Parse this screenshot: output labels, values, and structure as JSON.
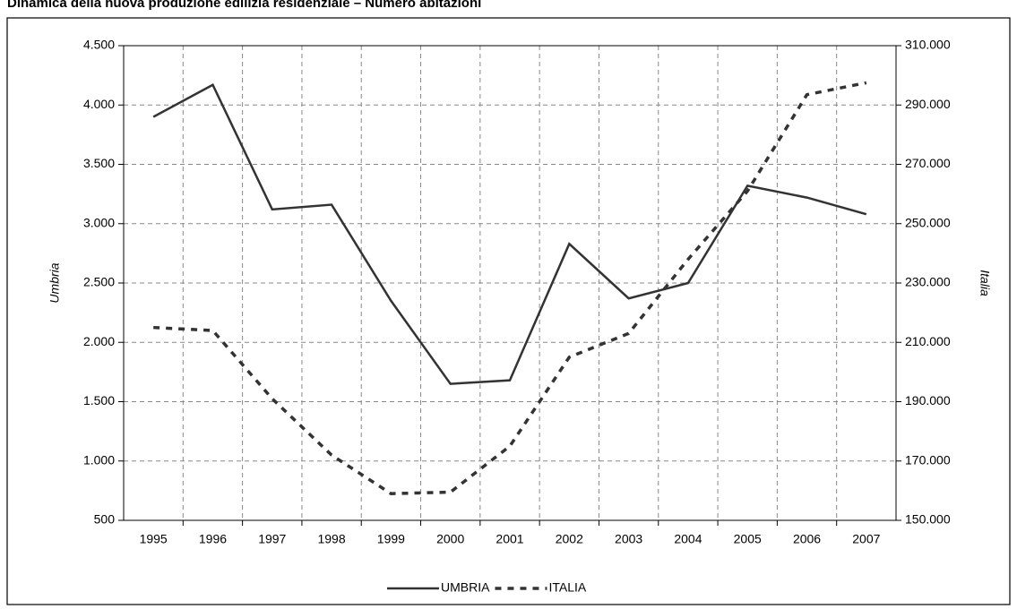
{
  "chart_data": {
    "type": "line",
    "title": "Dinamica della nuova produzione edilizia residenziale – Numero abitazioni",
    "ylabel": "Umbria",
    "y2label": "Italia",
    "categories": [
      "1995",
      "1996",
      "1997",
      "1998",
      "1999",
      "2000",
      "2001",
      "2002",
      "2003",
      "2004",
      "2005",
      "2006",
      "2007"
    ],
    "series": [
      {
        "name": "UMBRIA",
        "color": "#333333",
        "style": "solid",
        "values": [
          3900,
          4170,
          3120,
          3160,
          2350,
          1650,
          1680,
          2830,
          2370,
          2500,
          3320,
          3220,
          3080
        ]
      },
      {
        "name": "ITALIA",
        "color": "#333333",
        "style": "dotted",
        "axis": "y2",
        "values": [
          215000,
          214000,
          191000,
          172000,
          159000,
          159500,
          175000,
          205000,
          213000,
          238000,
          261000,
          293500,
          297500
        ]
      }
    ],
    "ylim": [
      500,
      4500
    ],
    "yticks": [
      {
        "value": 500,
        "label": "500"
      },
      {
        "value": 1000,
        "label": "1.000"
      },
      {
        "value": 1500,
        "label": "1.500"
      },
      {
        "value": 2000,
        "label": "2.000"
      },
      {
        "value": 2500,
        "label": "2.500"
      },
      {
        "value": 3000,
        "label": "3.000"
      },
      {
        "value": 3500,
        "label": "3.500"
      },
      {
        "value": 4000,
        "label": "4.000"
      },
      {
        "value": 4500,
        "label": "4.500"
      }
    ],
    "y2lim": [
      150000,
      310000
    ],
    "y2ticks": [
      {
        "value": 150000,
        "label": "150.000"
      },
      {
        "value": 170000,
        "label": "170.000"
      },
      {
        "value": 190000,
        "label": "190.000"
      },
      {
        "value": 210000,
        "label": "210.000"
      },
      {
        "value": 230000,
        "label": "230.000"
      },
      {
        "value": 250000,
        "label": "250.000"
      },
      {
        "value": 270000,
        "label": "270.000"
      },
      {
        "value": 290000,
        "label": "290.000"
      },
      {
        "value": 310000,
        "label": "310.000"
      }
    ],
    "grid": true,
    "legend": "bottom"
  }
}
